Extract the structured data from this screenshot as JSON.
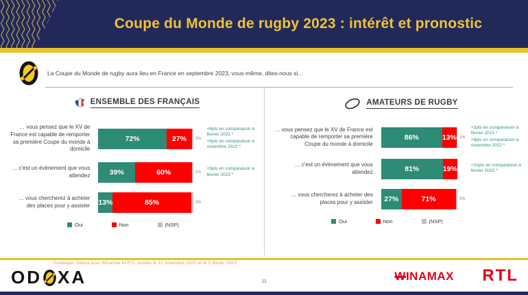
{
  "header": {
    "title": "Coupe du Monde de rugby 2023 : intérêt et pronostic"
  },
  "question": {
    "text": "La Coupe du Monde de rugby aura lieu en France en septembre 2023, vous-même, dites-nous si…"
  },
  "legend": {
    "items": [
      "Oui",
      "Non",
      "(NSP)"
    ]
  },
  "colors": {
    "navy": "#22295a",
    "gold": "#e9c32a",
    "title_gold": "#f0c437",
    "oui_green": "#2e8b76",
    "non_red": "#fe0000",
    "nsp_grey": "#bfbfbf",
    "annotation_green": "#2e9181",
    "logo_red": "#e2001a",
    "series": [
      "#2e8b76",
      "#fe0000",
      "#bfbfbf"
    ]
  },
  "chart_data": [
    {
      "type": "bar",
      "orientation": "horizontal-stacked",
      "title": "ENSEMBLE DES FRANÇAIS",
      "icon": "france-map-icon",
      "xlim": [
        0,
        100
      ],
      "legend_position": "bottom",
      "categories": [
        "… vous pensez que le XV de France est capable de remporter sa première Coupe du monde à domicile",
        "… c'est un évènement que vous attendez",
        "… vous chercherez à acheter des places pour y assister"
      ],
      "series": [
        {
          "name": "Oui",
          "values": [
            72,
            39,
            13
          ]
        },
        {
          "name": "Non",
          "values": [
            27,
            60,
            85
          ]
        },
        {
          "name": "(NSP)",
          "values": [
            1,
            1,
            2
          ]
        }
      ],
      "nsp_outside_labels": [
        "1%",
        "1%",
        "2%"
      ],
      "annotations": [
        [
          "+8pts en comparaison à février 2023 *",
          "+6pts en comparaison à novembre 2022 *"
        ],
        [
          "+5pts en comparaison à février 2023 *"
        ],
        []
      ]
    },
    {
      "type": "bar",
      "orientation": "horizontal-stacked",
      "title": "AMATEURS DE RUGBY",
      "icon": "rugby-ball-icon",
      "xlim": [
        0,
        100
      ],
      "legend_position": "bottom",
      "categories": [
        "… vous pensez que le XV de France est capable de remporter sa première Coupe du monde à domicile",
        "… c'est un évènement que vous attendez",
        "… vous chercherez à acheter des places pour y assister"
      ],
      "series": [
        {
          "name": "Oui",
          "values": [
            86,
            81,
            27
          ]
        },
        {
          "name": "Non",
          "values": [
            13,
            19,
            71
          ]
        },
        {
          "name": "(NSP)",
          "values": [
            1,
            0,
            2
          ]
        }
      ],
      "nsp_outside_labels": [
        "1%",
        "",
        "2%"
      ],
      "annotations": [
        [
          "+2pts en comparaison à février 2023 *",
          "+9pts en comparaison à novembre 2022 *"
        ],
        [
          "+10pts en comparaison à février 2023 *"
        ],
        []
      ]
    }
  ],
  "footer": {
    "footnote": "*Sondages Odoxa pour Winamax et RTL publiés le 11 novembre 2022 et le 5 février 2023",
    "page_number": "11",
    "logos": {
      "odoxa_prefix": "OD",
      "odoxa_suffix": "XA",
      "winamax": "WINAMAX",
      "rtl": "RTL"
    }
  }
}
